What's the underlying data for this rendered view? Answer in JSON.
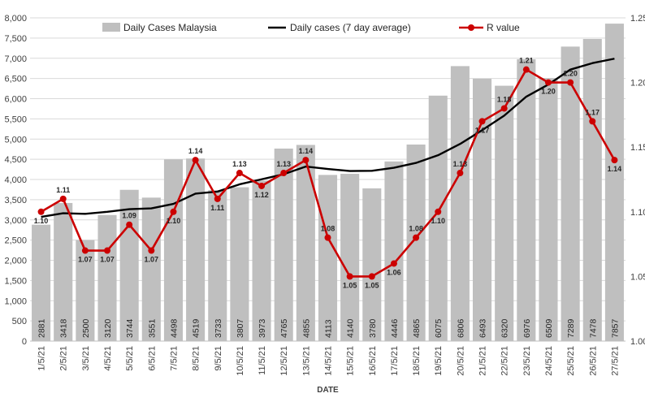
{
  "chart_data": {
    "type": "bar",
    "xlabel": "DATE",
    "categories": [
      "1/5/21",
      "2/5/21",
      "3/5/21",
      "4/5/21",
      "5/5/21",
      "6/5/21",
      "7/5/21",
      "8/5/21",
      "9/5/21",
      "10/5/21",
      "11/5/21",
      "12/5/21",
      "13/5/21",
      "14/5/21",
      "15/5/21",
      "16/5/21",
      "17/5/21",
      "18/5/21",
      "19/5/21",
      "20/5/21",
      "21/5/21",
      "22/5/21",
      "23/5/21",
      "24/5/21",
      "25/5/21",
      "26/5/21",
      "27/5/21"
    ],
    "y_left": {
      "ylim": [
        0,
        8000
      ],
      "ticks": [
        0,
        500,
        1000,
        1500,
        2000,
        2500,
        3000,
        3500,
        4000,
        4500,
        5000,
        5500,
        6000,
        6500,
        7000,
        7500,
        8000
      ],
      "tick_labels": [
        "0",
        "500",
        "1,000",
        "1,500",
        "2,000",
        "2,500",
        "3,000",
        "3,500",
        "4,000",
        "4,500",
        "5,000",
        "5,500",
        "6,000",
        "6,500",
        "7,000",
        "7,500",
        "8,000"
      ]
    },
    "y_right": {
      "ylim": [
        1.0,
        1.25
      ],
      "ticks": [
        1.0,
        1.05,
        1.1,
        1.15,
        1.2,
        1.25
      ],
      "tick_labels": [
        "1.00",
        "1.05",
        "1.10",
        "1.15",
        "1.20",
        "1.25"
      ]
    },
    "grid": "horizontal",
    "legend_position": "top",
    "series": [
      {
        "name": "Daily Cases Malaysia",
        "kind": "bar",
        "axis": "left",
        "color": "#bfbfbf",
        "values": [
          2881,
          3418,
          2500,
          3120,
          3744,
          3551,
          4498,
          4519,
          3733,
          3807,
          3973,
          4765,
          4855,
          4113,
          4140,
          3780,
          4446,
          4865,
          6075,
          6806,
          6493,
          6320,
          6976,
          6509,
          7289,
          7478,
          7857
        ]
      },
      {
        "name": "Daily cases (7 day average)",
        "kind": "line",
        "axis": "left",
        "color": "#000000",
        "values": [
          3075,
          3165,
          3150,
          3200,
          3265,
          3285,
          3395,
          3650,
          3700,
          3880,
          4005,
          4130,
          4320,
          4260,
          4210,
          4215,
          4290,
          4410,
          4600,
          4880,
          5220,
          5580,
          6050,
          6350,
          6720,
          6880,
          6990
        ]
      },
      {
        "name": "R value",
        "kind": "line-markers",
        "axis": "right",
        "color": "#cc0000",
        "values": [
          1.1,
          1.11,
          1.07,
          1.07,
          1.09,
          1.07,
          1.1,
          1.14,
          1.11,
          1.13,
          1.12,
          1.13,
          1.14,
          1.08,
          1.05,
          1.05,
          1.06,
          1.08,
          1.1,
          1.13,
          1.17,
          1.18,
          1.21,
          1.2,
          1.2,
          1.17,
          1.14
        ],
        "labels": [
          "1.10",
          "1.11",
          "1.07",
          "1.07",
          "1.09",
          "1.07",
          "1.10",
          "1.14",
          "1.11",
          "1.13",
          "1.12",
          "1.13",
          "1.14",
          "1.08",
          "1.05",
          "1.05",
          "1.06",
          "1.08",
          "1.10",
          "1.13",
          "1.17",
          "1.18",
          "1.21",
          "1.20",
          "1.20",
          "1.17",
          "1.14"
        ]
      }
    ]
  }
}
